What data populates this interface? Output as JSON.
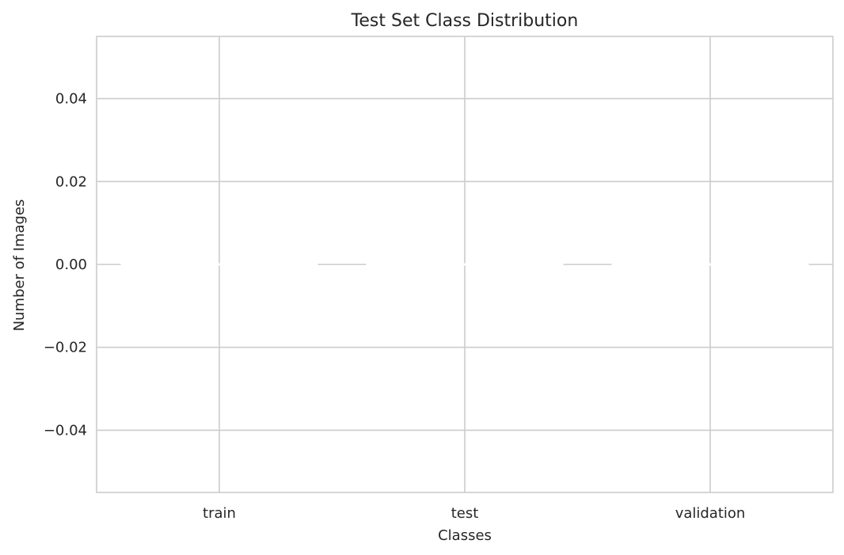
{
  "chart_data": {
    "type": "bar",
    "title": "Test Set Class Distribution",
    "xlabel": "Classes",
    "ylabel": "Number of Images",
    "categories": [
      "train",
      "test",
      "validation"
    ],
    "values": [
      0,
      0,
      0
    ],
    "ylim": [
      -0.055,
      0.055
    ],
    "yticks": [
      0.04,
      0.02,
      0.0,
      -0.02,
      -0.04
    ],
    "ytick_labels": [
      "0.04",
      "0.02",
      "0.00",
      "−0.02",
      "−0.04"
    ],
    "grid": true,
    "legend": "none",
    "colors": {
      "background": "#ffffff",
      "grid": "#cccccc",
      "spine": "#cccccc",
      "bar": "#cccccc",
      "bar_edge": "#ffffff",
      "text": "#262626"
    }
  }
}
